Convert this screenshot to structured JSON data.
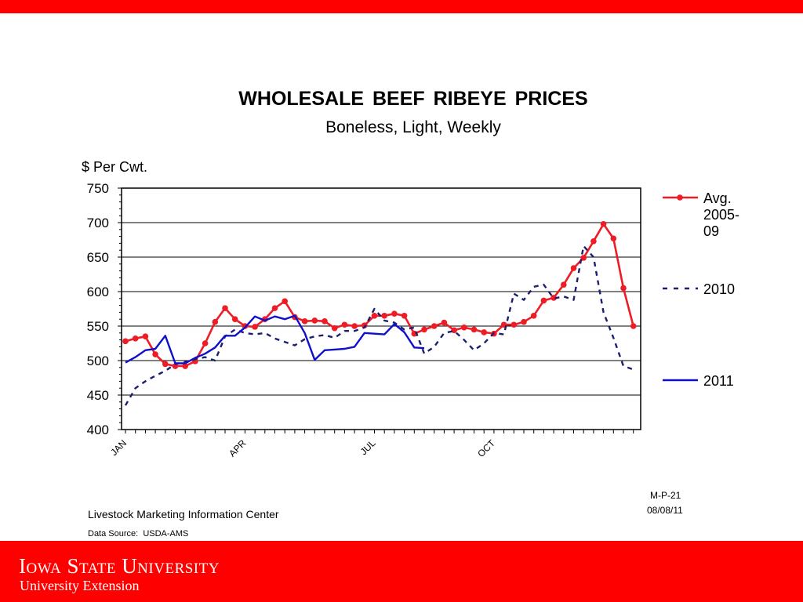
{
  "slide": {
    "title": "WHOLESALE  BEEF  RIBEYE  PRICES",
    "subtitle": "Boneless, Light, Weekly",
    "code": "M-P-21",
    "date": "08/08/11",
    "source_org": "Livestock Marketing Information Center",
    "source_data": "Data Source:  USDA-AMS",
    "university": "Iowa State University",
    "extension": "University Extension"
  },
  "colors": {
    "brand_red": "#ff0000",
    "avg": "#ee1c25",
    "y2010": "#1b1f6e",
    "y2011": "#1010cc"
  },
  "chart_data": {
    "type": "line",
    "title": "WHOLESALE  BEEF  RIBEYE  PRICES",
    "subtitle": "Boneless, Light, Weekly",
    "ylabel": "$ Per Cwt.",
    "xlabel": "",
    "ylim": [
      400,
      750
    ],
    "yticks": [
      400,
      450,
      500,
      550,
      600,
      650,
      700,
      750
    ],
    "grid": true,
    "legend_position": "right",
    "x_tick_labels": [
      {
        "label": "JAN",
        "week": 1
      },
      {
        "label": "APR",
        "week": 13
      },
      {
        "label": "JUL",
        "week": 26
      },
      {
        "label": "OCT",
        "week": 38
      }
    ],
    "series": [
      {
        "name": "Avg. 2005-09",
        "legend_lines": [
          "Avg.",
          "2005-",
          "09"
        ],
        "style": "solid-markers",
        "x": [
          1,
          2,
          3,
          4,
          5,
          6,
          7,
          8,
          9,
          10,
          11,
          12,
          13,
          14,
          15,
          16,
          17,
          18,
          19,
          20,
          21,
          22,
          23,
          24,
          25,
          26,
          27,
          28,
          29,
          30,
          31,
          32,
          33,
          34,
          35,
          36,
          37,
          38,
          39,
          40,
          41,
          42,
          43,
          44,
          45,
          46,
          47,
          48,
          49,
          50,
          51,
          52
        ],
        "values": [
          528,
          532,
          535,
          509,
          495,
          492,
          492,
          499,
          525,
          556,
          576,
          560,
          550,
          549,
          560,
          576,
          586,
          563,
          557,
          558,
          557,
          547,
          552,
          550,
          551,
          565,
          565,
          568,
          565,
          539,
          545,
          550,
          555,
          544,
          548,
          545,
          541,
          539,
          552,
          552,
          556,
          565,
          587,
          591,
          610,
          634,
          649,
          673,
          698,
          677,
          605,
          550
        ]
      },
      {
        "name": "2010",
        "style": "dashed",
        "x": [
          1,
          2,
          3,
          4,
          5,
          6,
          7,
          8,
          9,
          10,
          11,
          12,
          13,
          14,
          15,
          16,
          17,
          18,
          19,
          20,
          21,
          22,
          23,
          24,
          25,
          26,
          27,
          28,
          29,
          30,
          31,
          32,
          33,
          34,
          35,
          36,
          37,
          38,
          39,
          40,
          41,
          42,
          43,
          44,
          45,
          46,
          47,
          48,
          49,
          50,
          51,
          52
        ],
        "values": [
          435,
          460,
          470,
          478,
          485,
          495,
          498,
          502,
          505,
          500,
          535,
          545,
          540,
          538,
          540,
          532,
          527,
          522,
          531,
          535,
          537,
          533,
          543,
          543,
          548,
          575,
          558,
          555,
          545,
          548,
          510,
          520,
          540,
          543,
          530,
          515,
          525,
          540,
          538,
          597,
          588,
          607,
          610,
          590,
          593,
          588,
          666,
          650,
          570,
          533,
          492,
          487
        ]
      },
      {
        "name": "2011",
        "style": "solid",
        "x": [
          1,
          2,
          3,
          4,
          5,
          6,
          7,
          8,
          9,
          10,
          11,
          12,
          13,
          14,
          15,
          16,
          17,
          18,
          19,
          20,
          21,
          22,
          23,
          24,
          25,
          26,
          27,
          28,
          29,
          30,
          31
        ],
        "values": [
          497,
          505,
          515,
          517,
          536,
          496,
          496,
          504,
          510,
          519,
          536,
          536,
          548,
          564,
          558,
          564,
          560,
          565,
          540,
          501,
          515,
          516,
          517,
          520,
          540,
          539,
          538,
          553,
          541,
          519,
          518
        ]
      }
    ]
  }
}
